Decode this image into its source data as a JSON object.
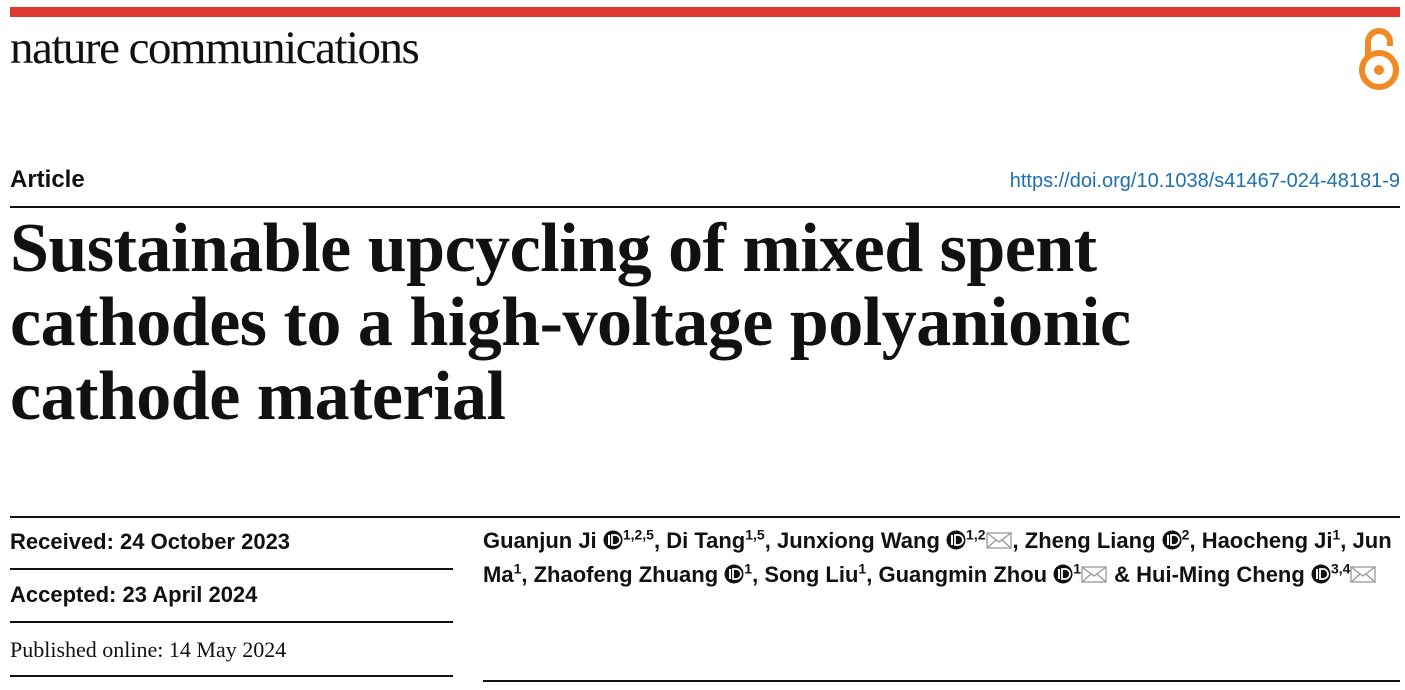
{
  "header": {
    "journal": "nature communications",
    "article_type": "Article",
    "doi": "https://doi.org/10.1038/s41467-024-48181-9"
  },
  "title_lines": [
    "Sustainable upcycling of mixed spent",
    "cathodes to a high-voltage polyanionic",
    "cathode material"
  ],
  "dates": {
    "received": "Received: 24 October 2023",
    "accepted": "Accepted: 23 April 2024",
    "published": "Published online: 14 May 2024"
  },
  "authors": [
    {
      "name": "Guanjun Ji",
      "orcid": true,
      "sup": "1,2,5",
      "email": false,
      "separator": ","
    },
    {
      "name": "Di Tang",
      "orcid": false,
      "sup": "1,5",
      "email": false,
      "separator": ","
    },
    {
      "name": "Junxiong Wang",
      "orcid": true,
      "sup": "1,2",
      "email": true,
      "separator": ","
    },
    {
      "name": "Zheng Liang",
      "orcid": true,
      "sup": "2",
      "email": false,
      "separator": ","
    },
    {
      "name": "Haocheng Ji",
      "orcid": false,
      "sup": "1",
      "email": false,
      "separator": ","
    },
    {
      "name": "Jun Ma",
      "orcid": false,
      "sup": "1",
      "email": false,
      "separator": ","
    },
    {
      "name": "Zhaofeng Zhuang",
      "orcid": true,
      "sup": "1",
      "email": false,
      "separator": ","
    },
    {
      "name": "Song Liu",
      "orcid": false,
      "sup": "1",
      "email": false,
      "separator": ","
    },
    {
      "name": "Guangmin Zhou",
      "orcid": true,
      "sup": "1",
      "email": true,
      "separator": "&"
    },
    {
      "name": "Hui-Ming Cheng",
      "orcid": true,
      "sup": "3,4",
      "email": true
    }
  ]
}
